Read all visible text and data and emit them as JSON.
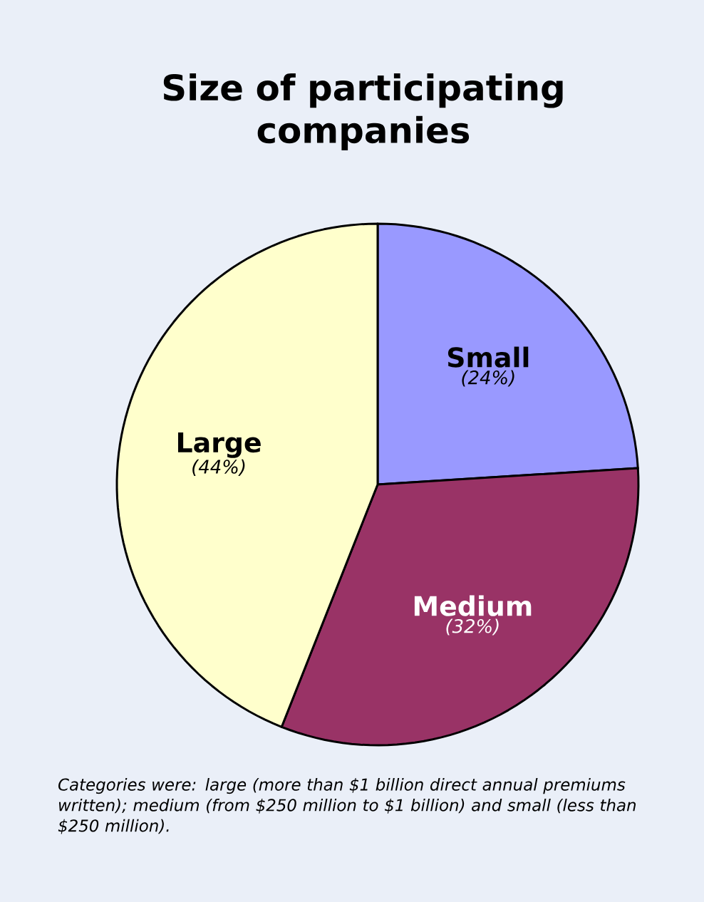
{
  "chart_data": {
    "type": "pie",
    "title": "Size of participating companies",
    "categories": [
      "Small",
      "Medium",
      "Large"
    ],
    "values": [
      24,
      32,
      44
    ],
    "colors": [
      "#9999ff",
      "#993366",
      "#ffffcc"
    ],
    "value_labels": [
      "(24%)",
      "(32%)",
      "(44%)"
    ],
    "annotations": [
      "Categories were: large (more than $1 billion direct annual premiums written); medium (from $250 million to $1 billion) and small (less than $250 million)."
    ]
  }
}
